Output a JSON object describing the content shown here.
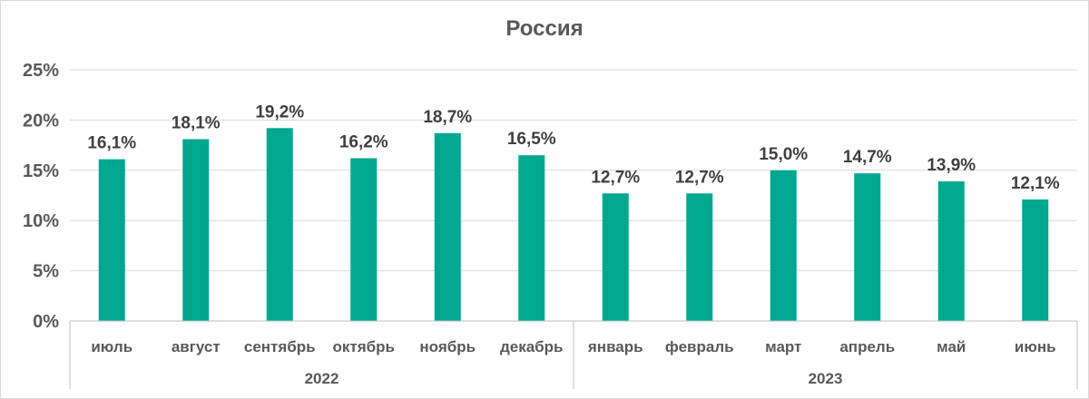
{
  "chart_data": {
    "type": "bar",
    "title": "Россия",
    "ylim": [
      0,
      25
    ],
    "y_ticks": [
      "0%",
      "5%",
      "10%",
      "15%",
      "20%",
      "25%"
    ],
    "y_tick_values": [
      0,
      5,
      10,
      15,
      20,
      25
    ],
    "grid": true,
    "bar_color": "#00a88f",
    "categories": [
      "июль",
      "август",
      "сентябрь",
      "октябрь",
      "ноябрь",
      "декабрь",
      "январь",
      "февраль",
      "март",
      "апрель",
      "май",
      "июнь"
    ],
    "values": [
      16.1,
      18.1,
      19.2,
      16.2,
      18.7,
      16.5,
      12.7,
      12.7,
      15.0,
      14.7,
      13.9,
      12.1
    ],
    "data_labels": [
      "16,1%",
      "18,1%",
      "19,2%",
      "16,2%",
      "18,7%",
      "16,5%",
      "12,7%",
      "12,7%",
      "15,0%",
      "14,7%",
      "13,9%",
      "12,1%"
    ],
    "groups": [
      {
        "label": "2022",
        "count": 6
      },
      {
        "label": "2023",
        "count": 6
      }
    ]
  }
}
